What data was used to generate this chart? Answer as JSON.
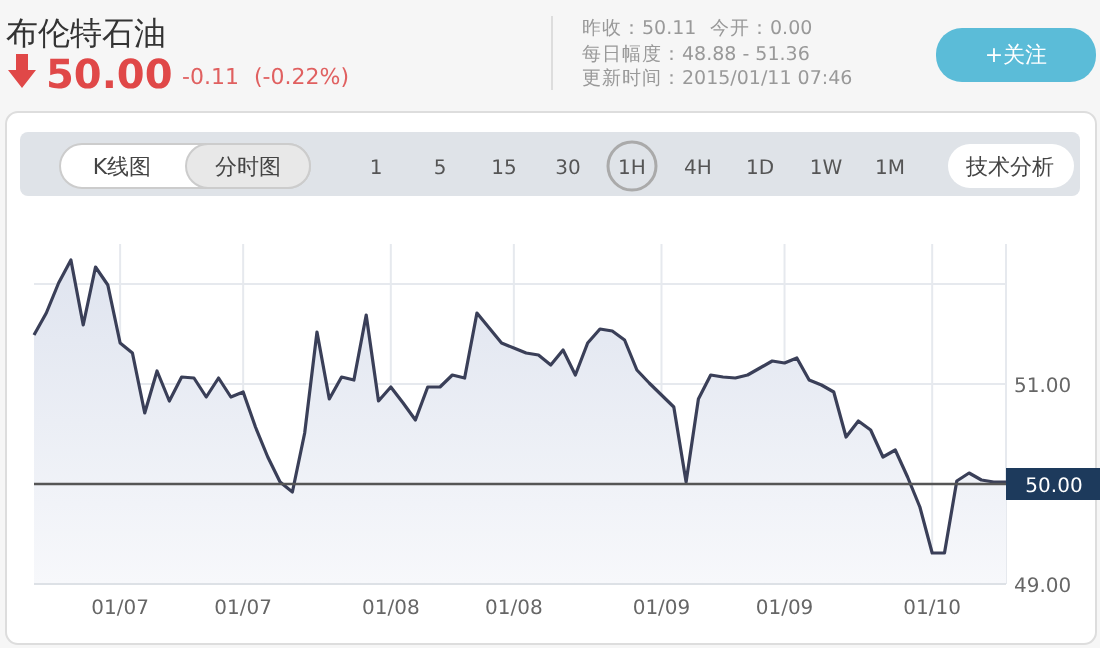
{
  "chart_data": {
    "type": "area",
    "title": "布伦特石油",
    "annotations": [
      "50.00",
      "-0.11",
      "(-0.22%)",
      "昨收：50.11",
      "今开：0.00",
      "每日幅度：48.88 - 51.36",
      "更新时间：2015/01/11 07:46",
      "+关注",
      "K线图",
      "分时图",
      "15",
      "30",
      "1",
      "5",
      "1H",
      "4H",
      "1D",
      "1W",
      "1M",
      "技术分析"
    ],
    "categories": [
      null,
      null,
      null,
      null,
      null,
      null,
      null,
      "01/07",
      null,
      null,
      null,
      null,
      null,
      null,
      null,
      null,
      null,
      "01/07",
      null,
      null,
      null,
      null,
      null,
      null,
      null,
      null,
      null,
      null,
      null,
      "01/08",
      null,
      null,
      null,
      null,
      null,
      null,
      null,
      null,
      null,
      "01/08",
      null,
      null,
      null,
      null,
      null,
      null,
      null,
      null,
      null,
      null,
      null,
      "01/09",
      null,
      null,
      null,
      null,
      null,
      null,
      null,
      null,
      null,
      "01/09",
      null,
      null,
      null,
      null,
      null,
      null,
      null,
      null,
      null,
      null,
      null,
      "01/10",
      null,
      null,
      null,
      null,
      null,
      null
    ],
    "series": [
      {
        "color": "#3a3f58",
        "values": [
          51.49,
          51.71,
          52.01,
          52.24,
          51.59,
          52.17,
          51.99,
          51.41,
          51.31,
          50.71,
          51.13,
          50.83,
          51.07,
          51.06,
          50.87,
          51.06,
          50.87,
          50.92,
          50.57,
          50.27,
          50.02,
          49.92,
          50.51,
          51.52,
          50.85,
          51.07,
          51.04,
          51.69,
          50.83,
          50.97,
          50.81,
          50.64,
          50.97,
          50.97,
          51.09,
          51.06,
          51.71,
          51.56,
          51.41,
          51.36,
          51.31,
          51.29,
          51.19,
          51.34,
          51.09,
          51.41,
          51.55,
          51.53,
          51.44,
          51.14,
          51.01,
          50.89,
          50.77,
          50.02,
          50.85,
          51.09,
          51.07,
          51.06,
          51.09,
          51.16,
          51.23,
          51.21,
          51.26,
          51.04,
          50.99,
          50.92,
          50.47,
          50.63,
          50.54,
          50.27,
          50.34,
          50.07,
          49.77,
          49.31,
          49.31,
          50.03,
          50.11,
          50.04,
          50.02,
          50.02
        ]
      }
    ],
    "ylim": [
      49,
      52.4
    ],
    "yticks": [
      {
        "value": 49,
        "label": "49.00"
      },
      {
        "value": 50,
        "label": null
      },
      {
        "value": 51,
        "label": "51.00"
      },
      {
        "value": 52,
        "label": null
      }
    ],
    "ref_lines": [
      {
        "axis": "y",
        "value": 50,
        "label": "50.00",
        "color": "#555555"
      }
    ],
    "grid": true,
    "marker": "none",
    "line_style": "solid"
  }
}
